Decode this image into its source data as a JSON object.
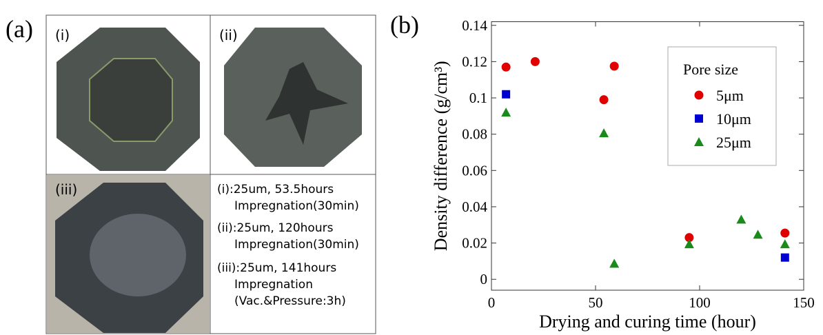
{
  "panel_a": {
    "label": "(a)",
    "photos": [
      "(i)",
      "(ii)",
      "(iii)"
    ],
    "captions": [
      "(i):25um, 53.5hours",
      "Impregnation(30min)",
      "(ii):25um, 120hours",
      "Impregnation(30min)",
      "(iii):25um, 141hours",
      "Impregnation",
      "(Vac.&Pressure:3h)"
    ]
  },
  "chart_data": {
    "type": "scatter",
    "panel_label": "(b)",
    "x_label": "Drying and curing time (hour)",
    "y_label": "Density difference (g/cm³)",
    "xlim": [
      0,
      150
    ],
    "xticks": [
      0,
      50,
      100,
      150
    ],
    "ylim": [
      -0.006,
      0.142
    ],
    "yticks": [
      0,
      0.02,
      0.04,
      0.06,
      0.08,
      0.1,
      0.12,
      0.14
    ],
    "legend_title": "Pore size",
    "legend": "upper right",
    "series": [
      {
        "name": "5μm",
        "color": "#e00000",
        "marker": "circle",
        "x": [
          7,
          21,
          54,
          59,
          95,
          141
        ],
        "values": [
          0.117,
          0.12,
          0.099,
          0.1175,
          0.023,
          0.0255
        ]
      },
      {
        "name": "10μm",
        "color": "#0000d0",
        "marker": "square",
        "x": [
          7,
          141
        ],
        "values": [
          0.102,
          0.012
        ]
      },
      {
        "name": "25μm",
        "color": "#1a8a1a",
        "marker": "triangle",
        "x": [
          7,
          54,
          59,
          95,
          120,
          128,
          141
        ],
        "values": [
          0.092,
          0.0806,
          0.0087,
          0.0194,
          0.033,
          0.0247,
          0.0194
        ]
      }
    ]
  }
}
